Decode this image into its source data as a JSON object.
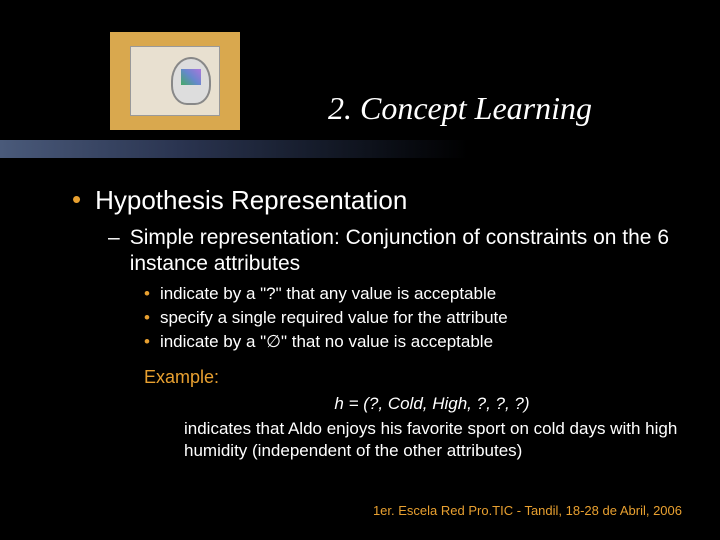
{
  "colors": {
    "background": "#000000",
    "accent": "#e8a030",
    "text": "#ffffff",
    "logo_bg": "#d9a84e",
    "gradient_from": "#4a5a7a",
    "gradient_to": "#000000"
  },
  "title": "2. Concept Learning",
  "bullet_l1": "Hypothesis Representation",
  "bullet_l2": "Simple representation: Conjunction of constraints on the 6 instance attributes",
  "sub_bullets": [
    "indicate by a \"?\" that any value is acceptable",
    "specify a single required value for the attribute",
    "indicate by a \"∅\" that no value is acceptable"
  ],
  "example": {
    "label": "Example:",
    "formula": "h = (?, Cold, High, ?, ?, ?)",
    "description": "indicates that Aldo enjoys his favorite sport on cold days with high humidity (independent of the other attributes)"
  },
  "footer": "1er. Escela Red Pro.TIC - Tandil, 18-28 de Abril, 2006"
}
